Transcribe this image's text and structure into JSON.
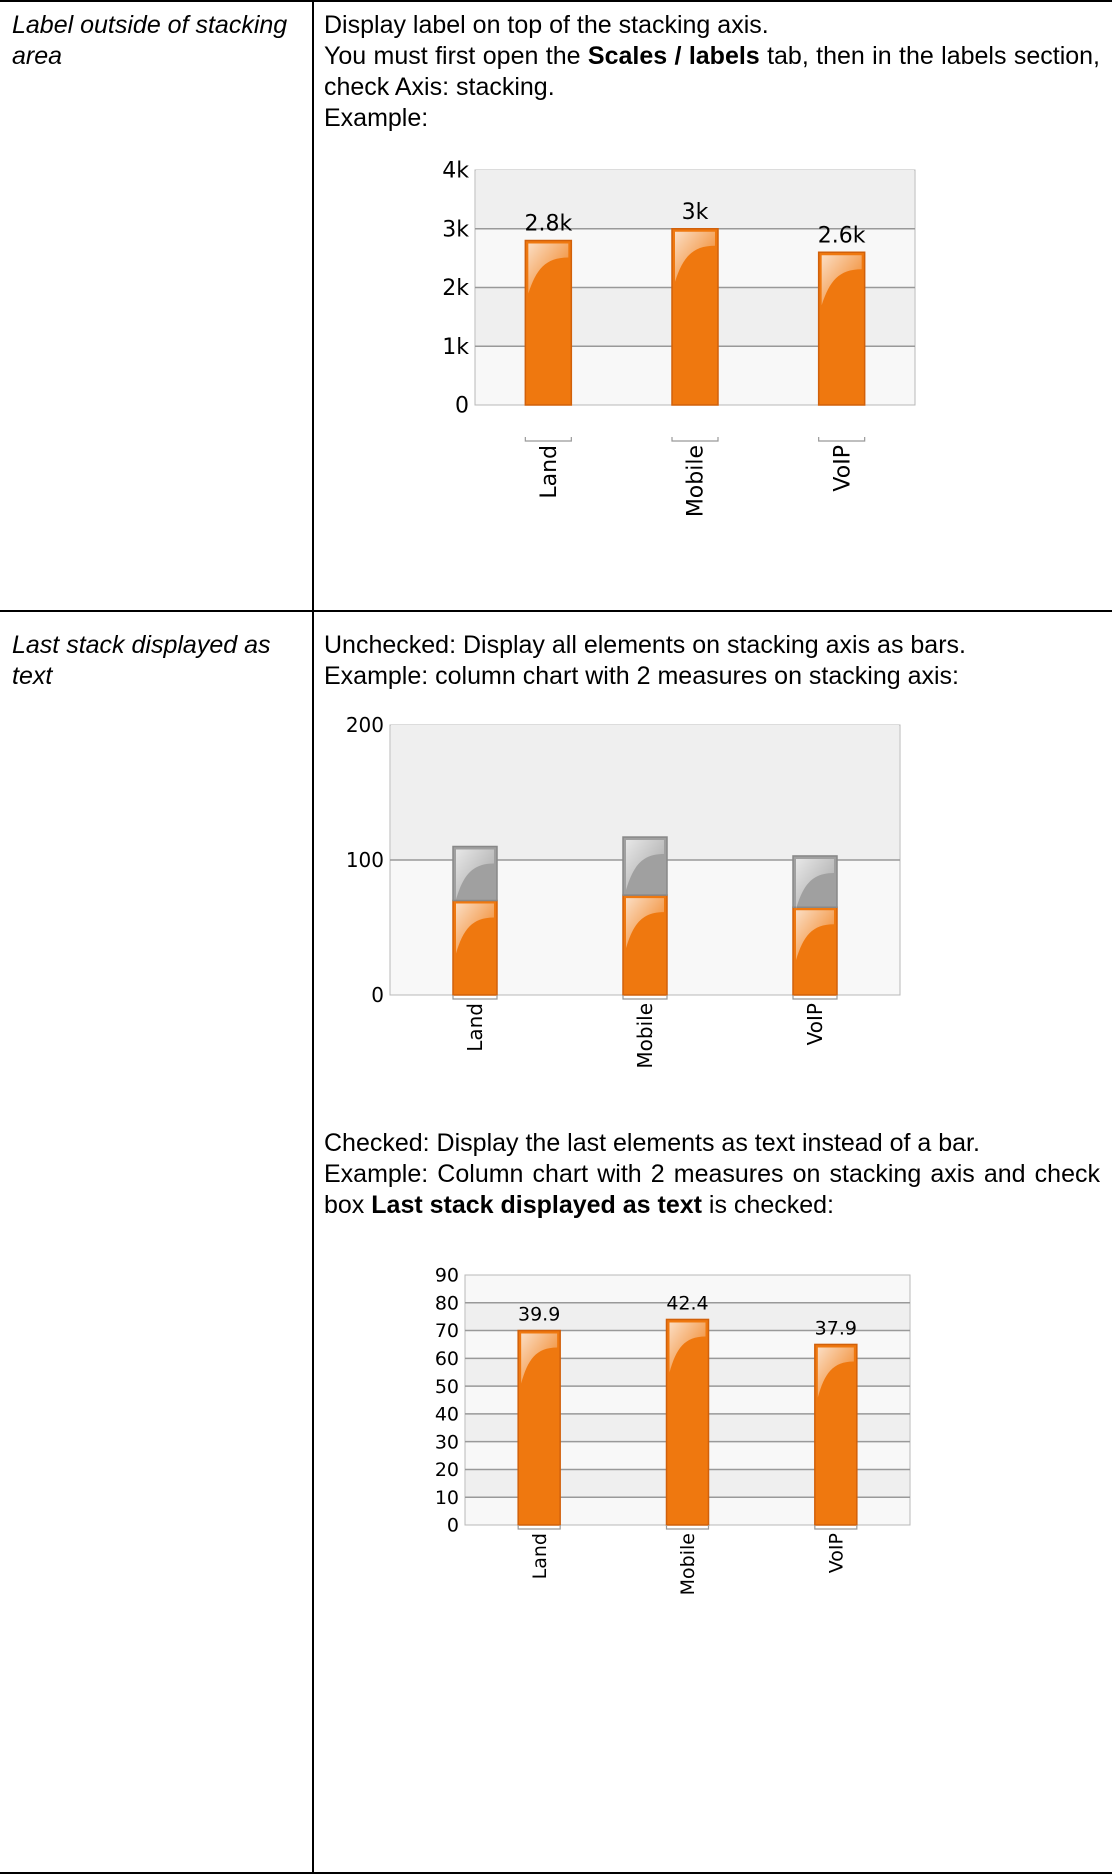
{
  "rows": [
    {
      "label": "Label outside of stacking area",
      "line1": "Display label on top of the stacking axis.",
      "line2_pre": "You must first open the ",
      "line2_bold": "Scales / labels",
      "line2_post": " tab, then in the labels section, check Axis: stacking.",
      "example": "Example:"
    },
    {
      "label": "Last stack displayed as text",
      "unchecked_text": "Unchecked: Display all elements on stacking axis as bars.",
      "unchecked_example": "Example: column chart with 2 measures on stacking axis:",
      "checked_text": "Checked: Display the last elements as text instead of a bar.",
      "checked_example_pre": "Example: Column chart with 2 measures on stacking axis and check box ",
      "checked_example_bold": "Last stack displayed as text",
      "checked_example_post": " is checked:"
    }
  ],
  "colors": {
    "bar": "#ef780f",
    "bar_dark": "#d1600a",
    "stack": "#a0a0a0",
    "plot_bg": "#f8f8f8",
    "band": "#efefef",
    "grid": "#999999"
  },
  "chart_data": [
    {
      "type": "bar",
      "categories": [
        "Land",
        "Mobile",
        "VoIP"
      ],
      "values": [
        2800,
        3000,
        2600
      ],
      "data_labels": [
        "2.8k",
        "3k",
        "2.6k"
      ],
      "yticks": [
        "0",
        "1k",
        "2k",
        "3k",
        "4k"
      ],
      "ylim": [
        0,
        4000
      ]
    },
    {
      "type": "bar",
      "stacked": true,
      "categories": [
        "Land",
        "Mobile",
        "VoIP"
      ],
      "series": [
        {
          "values": [
            70,
            74,
            65
          ]
        },
        {
          "values": [
            40,
            43,
            38
          ]
        }
      ],
      "yticks": [
        "0",
        "100",
        "200"
      ],
      "ylim": [
        0,
        200
      ]
    },
    {
      "type": "bar",
      "categories": [
        "Land",
        "Mobile",
        "VoIP"
      ],
      "values": [
        70,
        74,
        65
      ],
      "data_labels": [
        "39.9",
        "42.4",
        "37.9"
      ],
      "yticks": [
        "0",
        "10",
        "20",
        "30",
        "40",
        "50",
        "60",
        "70",
        "80",
        "90"
      ],
      "ylim": [
        0,
        90
      ]
    }
  ]
}
